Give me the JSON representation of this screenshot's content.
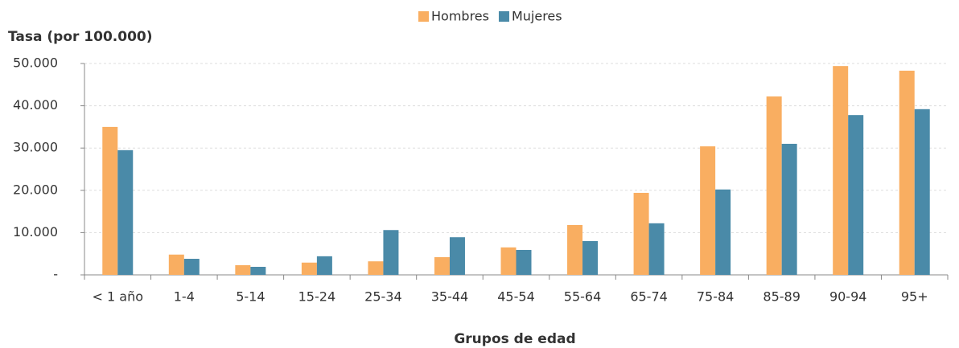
{
  "chart_data": {
    "type": "bar",
    "y_axis_label": "Tasa (por 100.000)",
    "x_axis_label": "Grupos de edad",
    "categories": [
      "< 1 año",
      "1-4",
      "5-14",
      "15-24",
      "25-34",
      "35-44",
      "45-54",
      "55-64",
      "65-74",
      "75-84",
      "85-89",
      "90-94",
      "95+"
    ],
    "series": [
      {
        "name": "Hombres",
        "color": "#f9ae61",
        "values": [
          35000,
          4800,
          2300,
          2900,
          3200,
          4200,
          6500,
          11800,
          19400,
          30400,
          42200,
          49400,
          48300
        ]
      },
      {
        "name": "Mujeres",
        "color": "#4a8aa8",
        "values": [
          29500,
          3800,
          1900,
          4400,
          10600,
          8900,
          5900,
          8000,
          12200,
          20200,
          31000,
          37800,
          39200
        ]
      }
    ],
    "ylim": [
      0,
      50000
    ],
    "yticks": [
      {
        "value": 0,
        "label": "-"
      },
      {
        "value": 10000,
        "label": "10.000"
      },
      {
        "value": 20000,
        "label": "20.000"
      },
      {
        "value": 30000,
        "label": "30.000"
      },
      {
        "value": 40000,
        "label": "40.000"
      },
      {
        "value": 50000,
        "label": "50.000"
      }
    ],
    "grid": true,
    "legend": "top"
  }
}
